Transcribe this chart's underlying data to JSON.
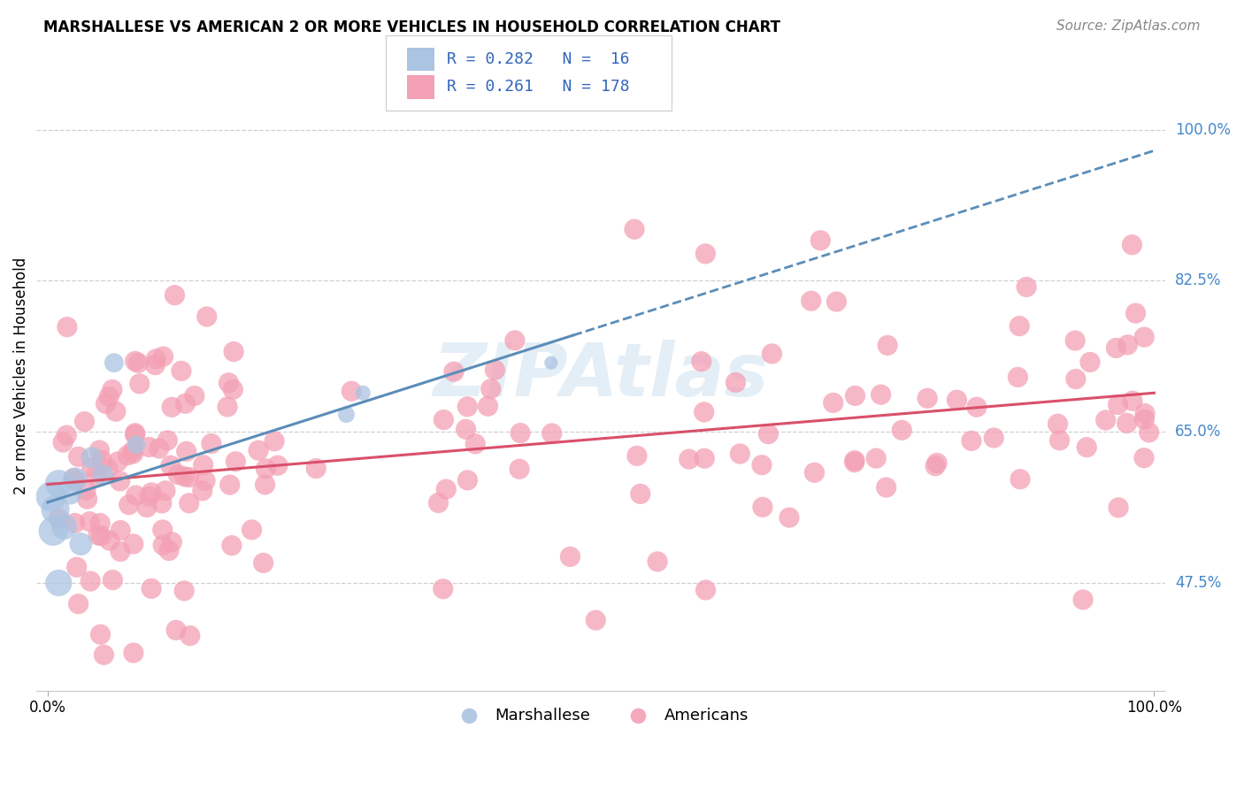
{
  "title": "MARSHALLESE VS AMERICAN 2 OR MORE VEHICLES IN HOUSEHOLD CORRELATION CHART",
  "source": "Source: ZipAtlas.com",
  "ylabel": "2 or more Vehicles in Household",
  "ytick_labels": [
    "47.5%",
    "65.0%",
    "82.5%",
    "100.0%"
  ],
  "ytick_values": [
    0.475,
    0.65,
    0.825,
    1.0
  ],
  "xlim": [
    -0.01,
    1.01
  ],
  "ylim": [
    0.35,
    1.08
  ],
  "watermark": "ZIPAtlas",
  "legend_r_marsh": "0.282",
  "legend_n_marsh": "16",
  "legend_r_amer": "0.261",
  "legend_n_amer": "178",
  "marshallese_color": "#aac4e2",
  "americans_color": "#f4a0b5",
  "trendline_marsh_color": "#5b8db8",
  "trendline_amer_color": "#d9506a",
  "marsh_x": [
    0.003,
    0.005,
    0.007,
    0.01,
    0.01,
    0.015,
    0.02,
    0.025,
    0.03,
    0.04,
    0.05,
    0.06,
    0.08,
    0.27,
    0.285,
    0.455
  ],
  "marsh_y": [
    0.575,
    0.535,
    0.56,
    0.59,
    0.475,
    0.54,
    0.58,
    0.595,
    0.52,
    0.62,
    0.6,
    0.73,
    0.635,
    0.67,
    0.695,
    0.73
  ],
  "marsh_sizes": [
    120,
    110,
    100,
    95,
    90,
    85,
    80,
    80,
    80,
    80,
    80,
    80,
    80,
    80,
    80,
    80
  ],
  "amer_seed": 42,
  "background_color": "#ffffff",
  "grid_color": "#d0d0d0",
  "title_fontsize": 12,
  "source_fontsize": 11,
  "axis_label_fontsize": 12,
  "tick_fontsize": 12
}
